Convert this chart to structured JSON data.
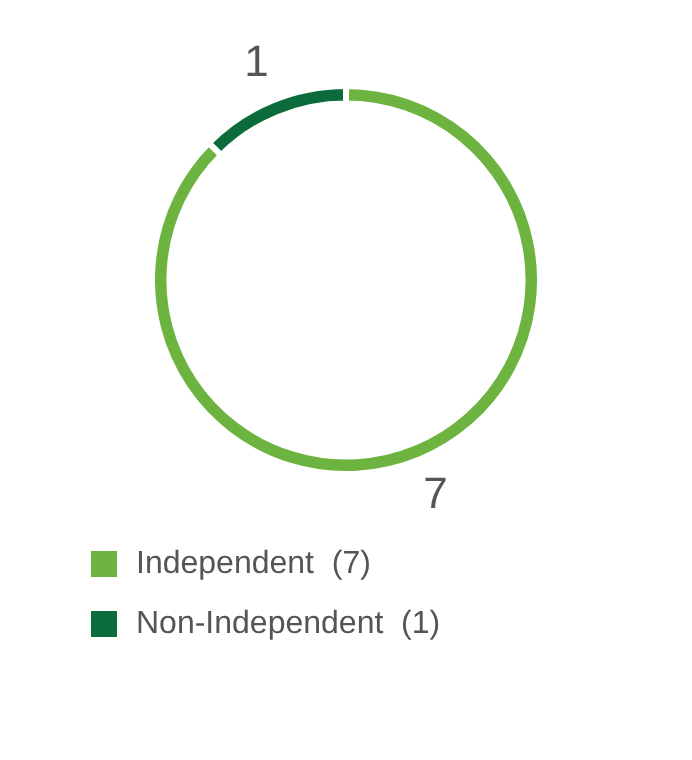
{
  "chart_data": {
    "type": "donut",
    "categories": [
      "Independent  (7)",
      "Non-Independent  (1)"
    ],
    "values": [
      7,
      1
    ],
    "colors": [
      "#6db33f",
      "#0b6b3a"
    ],
    "data_labels": true,
    "legend": "bottom"
  }
}
